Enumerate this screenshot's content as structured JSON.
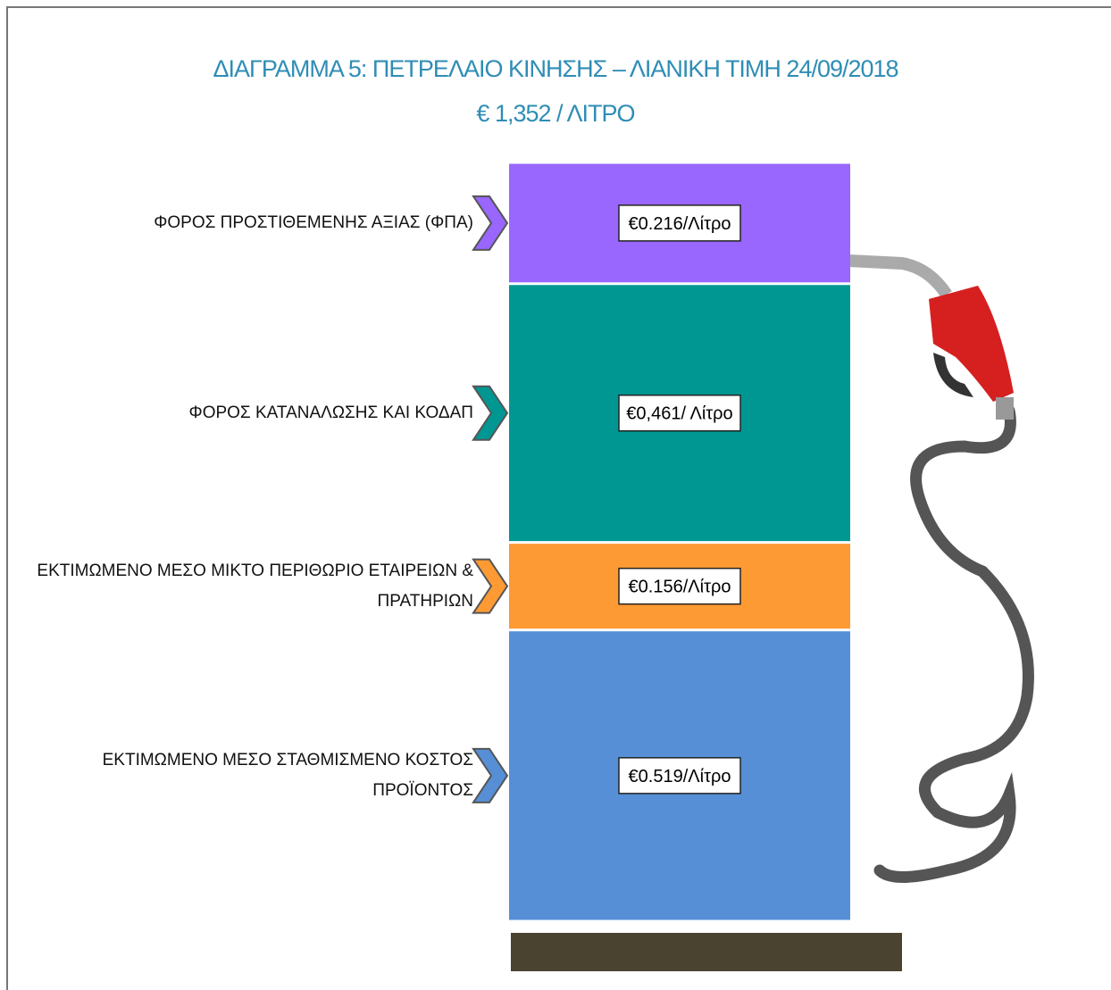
{
  "chart_data": {
    "type": "bar",
    "title": "ΔΙΑΓΡΑΜΜΑ 5: ΠΕΤΡΕΛΑΙΟ ΚΙΝΗΣΗΣ – ΛΙΑΝΙΚΗ ΤΙΜΗ  24/09/2018",
    "subtitle": "€ 1,352 / ΛΙΤΡΟ",
    "stacked": true,
    "series": [
      {
        "name": "ΕΚΤΙΜΩΜΕΝΟ ΜΕΣΟ ΣΤΑΘΜΙΣΜΕΝΟ ΚΟΣΤΟΣ ΠΡΟΪΟΝΤΟΣ",
        "color": "#568fd6",
        "values": [
          0.519
        ],
        "value_labels": [
          "€0.519/Λίτρο"
        ]
      },
      {
        "name": "ΕΚΤΙΜΩΜΕΝΟ ΜΕΣΟ ΜΙΚΤΟ ΠΕΡΙΘΩΡΙΟ ΕΤΑΙΡΕΙΩΝ & ΠΡΑΤΗΡΙΩΝ",
        "color": "#fd9a34",
        "values": [
          0.156
        ],
        "value_labels": [
          "€0.156/Λίτρο"
        ]
      },
      {
        "name": "ΦΟΡΟΣ ΚΑΤΑΝΑΛΩΣΗΣ  ΚΑΙ ΚΟΔΑΠ",
        "color": "#009793",
        "values": [
          0.461
        ],
        "value_labels": [
          "€0,461/ Λίτρο"
        ]
      },
      {
        "name": "ΦΟΡΟΣ ΠΡΟΣΤΙΘΕΜΕΝΗΣ ΑΞΙΑΣ (ΦΠΑ)",
        "color": "#9966fe",
        "values": [
          0.216
        ],
        "value_labels": [
          "€0.216/Λίτρο"
        ]
      }
    ]
  }
}
